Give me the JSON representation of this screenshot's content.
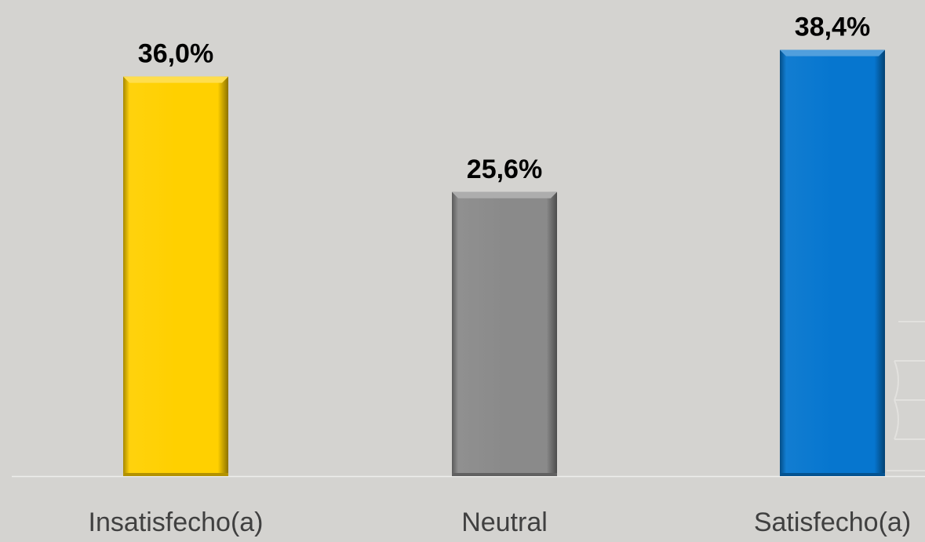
{
  "chart_data": {
    "type": "bar",
    "title": "",
    "xlabel": "",
    "ylabel": "",
    "categories": [
      "Insatisfecho(a)",
      "Neutral",
      "Satisfecho(a)"
    ],
    "values": [
      36.0,
      25.6,
      38.4
    ],
    "value_labels": [
      "36,0%",
      "25,6%",
      "38,4%"
    ],
    "colors": [
      "#ffd000",
      "#8a8a8a",
      "#0676cf"
    ],
    "ylim": [
      0,
      100
    ],
    "grid": false,
    "legend": "none",
    "background": "#d4d3d0"
  }
}
